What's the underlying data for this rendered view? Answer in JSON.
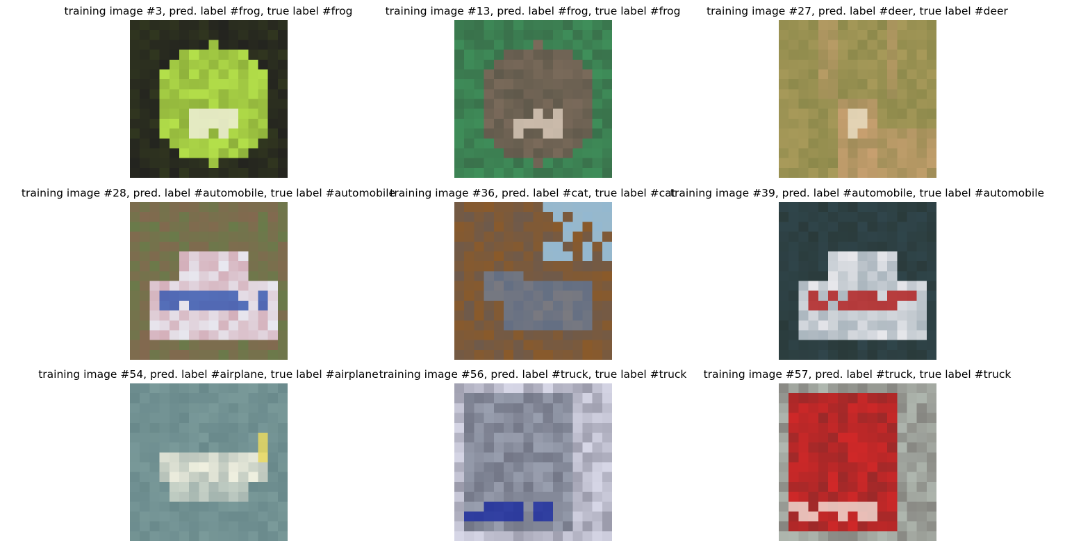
{
  "figure": {
    "panels": [
      {
        "title": "training image #3, pred. label #frog, true label #frog",
        "image_description": "pixelated green frog on dark background",
        "image_icon": "frog-image",
        "palette": {
          "bg": "#23231f",
          "main": "#b4e04a",
          "accent": "#f0f0d8",
          "shade": "#4a5a20"
        }
      },
      {
        "title": "training image #13, pred. label #frog, true label #frog",
        "image_description": "pixelated brown frog on green leaf",
        "image_icon": "frog-image",
        "palette": {
          "bg": "#3f8f5a",
          "main": "#7a6a5a",
          "accent": "#d8c8b8",
          "shade": "#2f3a30"
        }
      },
      {
        "title": "training image #27, pred. label #deer, true label #deer",
        "image_description": "pixelated deer with antlers in grass field",
        "image_icon": "deer-image",
        "palette": {
          "bg": "#a89a5a",
          "main": "#c8a070",
          "accent": "#e8dcc0",
          "shade": "#5a6a30"
        }
      },
      {
        "title": "training image #28, pred. label #automobile, true label #automobile",
        "image_description": "pixelated white rally car with blue stripes",
        "image_icon": "car-image",
        "palette": {
          "bg": "#6a7a4a",
          "main": "#e8e8f0",
          "accent": "#3a5ab0",
          "shade": "#b04858"
        }
      },
      {
        "title": "training image #36, pred. label #cat, true label #cat",
        "image_description": "pixelated gray cat standing on wooden floor",
        "image_icon": "cat-image",
        "palette": {
          "bg": "#8a5a2a",
          "main": "#7a7a80",
          "accent": "#9ac8e8",
          "shade": "#3a5a8a"
        }
      },
      {
        "title": "training image #39, pred. label #automobile, true label #automobile",
        "image_description": "pixelated white hatchback car rear view",
        "image_icon": "car-image",
        "palette": {
          "bg": "#2a3a3a",
          "main": "#e8e8ec",
          "accent": "#b02020",
          "shade": "#3a5a6a"
        }
      },
      {
        "title": "training image #54, pred. label #airplane, true label #airplane",
        "image_description": "pixelated white seaplane against gray green sky",
        "image_icon": "airplane-image",
        "palette": {
          "bg": "#7a9a9a",
          "main": "#f0f0e0",
          "accent": "#e8d860",
          "shade": "#4a6a70"
        }
      },
      {
        "title": "training image #56, pred. label #truck, true label #truck",
        "image_description": "pixelated truck with blue front bumper",
        "image_icon": "truck-image",
        "palette": {
          "bg": "#d8d8e8",
          "main": "#9aa0b0",
          "accent": "#2030a0",
          "shade": "#2a2a3a"
        }
      },
      {
        "title": "training image #57, pred. label #truck, true label #truck",
        "image_description": "pixelated red semi truck",
        "image_icon": "truck-image",
        "palette": {
          "bg": "#b0b8b0",
          "main": "#d02828",
          "accent": "#f0d8d0",
          "shade": "#3a2a2a"
        }
      }
    ]
  }
}
